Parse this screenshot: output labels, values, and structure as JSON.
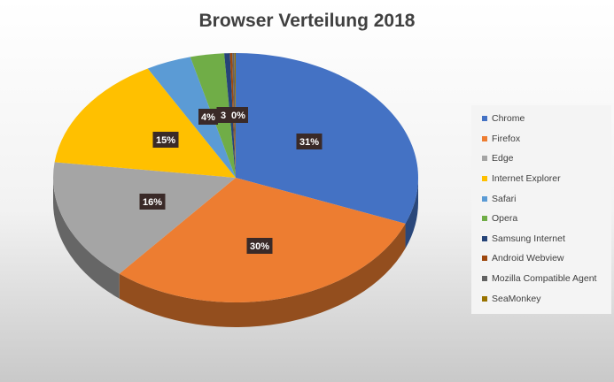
{
  "chart_data": {
    "type": "pie",
    "title": "Browser Verteilung 2018",
    "slices": [
      {
        "name": "Chrome",
        "value": 31,
        "label": "31%",
        "color": "#4472C4"
      },
      {
        "name": "Firefox",
        "value": 30,
        "label": "30%",
        "color": "#ED7D31"
      },
      {
        "name": "Edge",
        "value": 16,
        "label": "16%",
        "color": "#A5A5A5"
      },
      {
        "name": "Internet Explorer",
        "value": 15,
        "label": "15%",
        "color": "#FFC000"
      },
      {
        "name": "Safari",
        "value": 4,
        "label": "4%",
        "color": "#5B9BD5"
      },
      {
        "name": "Opera",
        "value": 3,
        "label": "3",
        "color": "#70AD47"
      },
      {
        "name": "Samsung Internet",
        "value": 0.5,
        "label": "0%",
        "color": "#264478"
      },
      {
        "name": "Android Webview",
        "value": 0.2,
        "label": "",
        "color": "#9E480E"
      },
      {
        "name": "Mozilla Compatible Agent",
        "value": 0.2,
        "label": "",
        "color": "#636363"
      },
      {
        "name": "SeaMonkey",
        "value": 0.1,
        "label": "",
        "color": "#997300"
      }
    ],
    "legend_position": "right"
  }
}
